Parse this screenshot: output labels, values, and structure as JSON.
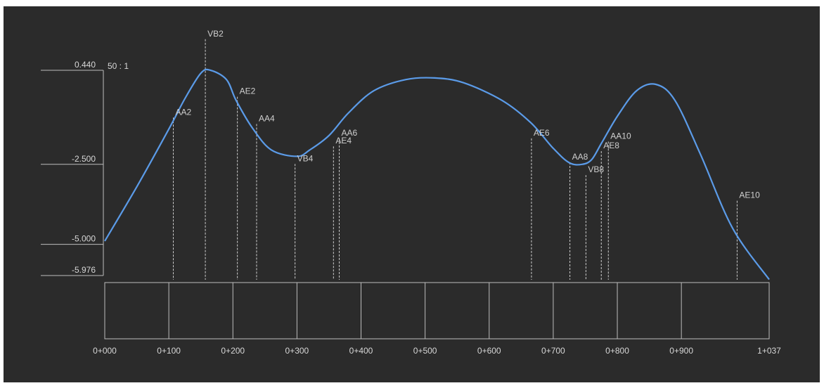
{
  "chart_data": {
    "type": "line",
    "scale_label": "50 : 1",
    "y_ticks": [
      "0.440",
      "-2.500",
      "-5.000",
      "-5.976"
    ],
    "y_tick_values": [
      0.44,
      -2.5,
      -5.0,
      -5.976
    ],
    "ylim": [
      -5.976,
      0.44
    ],
    "x_ticks": [
      "0+000",
      "0+100",
      "0+200",
      "0+300",
      "0+400",
      "0+500",
      "0+600",
      "0+700",
      "0+800",
      "0+900",
      "1+037"
    ],
    "x_tick_values": [
      0,
      100,
      200,
      300,
      400,
      500,
      600,
      700,
      800,
      900,
      1037
    ],
    "xlim": [
      0,
      1037
    ],
    "grid": false,
    "series": [
      {
        "color": "#5b9be8",
        "x": [
          0,
          50,
          100,
          125,
          150,
          165,
          190,
          205,
          230,
          260,
          300,
          320,
          350,
          380,
          420,
          470,
          515,
          560,
          620,
          665,
          700,
          725,
          745,
          760,
          775,
          800,
          830,
          860,
          890,
          930,
          980,
          1037
        ],
        "y": [
          -4.9,
          -3.2,
          -1.4,
          -0.45,
          0.35,
          0.44,
          0.15,
          -0.5,
          -1.35,
          -2.05,
          -2.25,
          -2.05,
          -1.6,
          -0.9,
          -0.2,
          0.15,
          0.2,
          0.05,
          -0.5,
          -1.2,
          -2.0,
          -2.45,
          -2.5,
          -2.35,
          -1.85,
          -1.0,
          -0.2,
          0.0,
          -0.5,
          -2.2,
          -4.5,
          -6.1
        ]
      }
    ],
    "points": [
      {
        "name": "VB2",
        "x": 157,
        "label_y": 1.5
      },
      {
        "name": "AA2",
        "x": 107,
        "label_y": -0.95
      },
      {
        "name": "AE2",
        "x": 207,
        "label_y": -0.3
      },
      {
        "name": "AA4",
        "x": 237,
        "label_y": -1.15
      },
      {
        "name": "VB4",
        "x": 297,
        "label_y": -2.4
      },
      {
        "name": "AE4",
        "x": 357,
        "label_y": -1.85
      },
      {
        "name": "AA6",
        "x": 366,
        "label_y": -1.6
      },
      {
        "name": "AE6",
        "x": 666,
        "label_y": -1.6
      },
      {
        "name": "AA8",
        "x": 726,
        "label_y": -2.35
      },
      {
        "name": "VB8",
        "x": 751,
        "label_y": -2.75
      },
      {
        "name": "AE8",
        "x": 775,
        "label_y": -2.0
      },
      {
        "name": "AA10",
        "x": 786,
        "label_y": -1.7
      },
      {
        "name": "AE10",
        "x": 987,
        "label_y": -3.55
      }
    ],
    "line_color": "#5b9be8",
    "axis_color": "#bdbdbd"
  }
}
